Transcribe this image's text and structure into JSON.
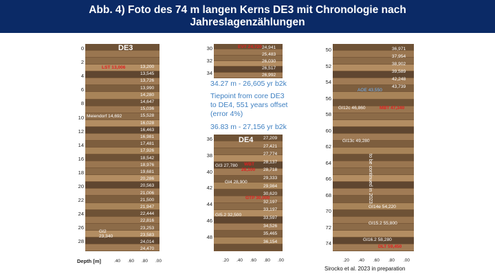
{
  "header": {
    "title": "Abb. 4) Foto des 74 m langen Kerns DE3 mit Chronologie nach Jahreslagenzählungen"
  },
  "colors": {
    "header_bg": "#0b2a66",
    "annotation": "#3d7fc1",
    "red_label": "#e02020",
    "age_label": "#ffffff"
  },
  "panel1": {
    "core_name": "DE3",
    "depth_labels": [
      "0",
      "2",
      "4",
      "6",
      "8",
      "10",
      "12",
      "14",
      "16",
      "18",
      "20",
      "22",
      "24",
      "26",
      "28"
    ],
    "ages": [
      "13,200",
      "13,545",
      "13,726",
      "13,990",
      "14,280",
      "14,647",
      "15,036",
      "15,528",
      "16,028",
      "16,463",
      "16,981",
      "17,481",
      "17,926",
      "18,542",
      "18,976",
      "19,681",
      "20,286",
      "20,563",
      "21,006",
      "21,500",
      "21,947",
      "22,444",
      "22,816",
      "23,253",
      "23,583",
      "24,014",
      "24,470"
    ],
    "red_label": "LST 13,006",
    "meiendorf": "Meiendorf 14,692",
    "gi2_line1": "GI2",
    "gi2_line2": "23,340",
    "axis_title": "Depth [m]",
    "x_ticks": [
      ".40",
      ".60",
      ".80",
      ".00"
    ]
  },
  "panel2": {
    "depth_labels": [
      "30",
      "32",
      "34"
    ],
    "red_label": "EVT 24,720",
    "ages": [
      "24,941",
      "25,483",
      "26,030",
      "26,517",
      "26,992"
    ]
  },
  "annotation": {
    "line1": "34.27 m - 26,605 yr b2k",
    "line2": "Tiepoint from core DE3",
    "line3": "to DE4, 551 years offset",
    "line4": "(error 4%)",
    "line5": "36.83 m - 27,156 yr b2k"
  },
  "panel3": {
    "core_name": "DE4",
    "depth_labels": [
      "36",
      "38",
      "40",
      "42",
      "44",
      "46",
      "48"
    ],
    "ages": [
      "27,209",
      "27,421",
      "27,774",
      "28,137",
      "28,718",
      "29,333",
      "29,984",
      "30,620",
      "32,197",
      "33,197",
      "33,597",
      "34,526",
      "35,465",
      "36,154"
    ],
    "gi3": "GI3  27,780",
    "wbt_line1": "WBT",
    "wbt_line2": "28,100",
    "gi4": "GI4  28,900",
    "red_mid": "GTP  30,000",
    "gi5": "GI5.2  32,500",
    "x_ticks": [
      ".20",
      ".40",
      ".60",
      ".80",
      ".00"
    ]
  },
  "panel4": {
    "depth_labels": [
      "50",
      "52",
      "54",
      "56",
      "58",
      "60",
      "62",
      "64",
      "66",
      "68",
      "70",
      "72",
      "74"
    ],
    "ages": [
      "36,971",
      "37,954",
      "38,902",
      "39,589",
      "42,248",
      "43,739"
    ],
    "aoe": "AOE  43,550",
    "gi12c": "GI12c  46,860",
    "mbt": "MBT  47,340",
    "gi13c": "GI13c  49,280",
    "gi14e": "GI14e  54,220",
    "gi152": "GI15.2  55,800",
    "gi162": "GI16.2  58,280",
    "red_bottom": "DLT  59,450",
    "rotated": "to be continued in 2023",
    "x_ticks": [
      ".20",
      ".40",
      ".60",
      ".80",
      ".00"
    ]
  },
  "source": "Sirocko et al. 2023 in preparation"
}
